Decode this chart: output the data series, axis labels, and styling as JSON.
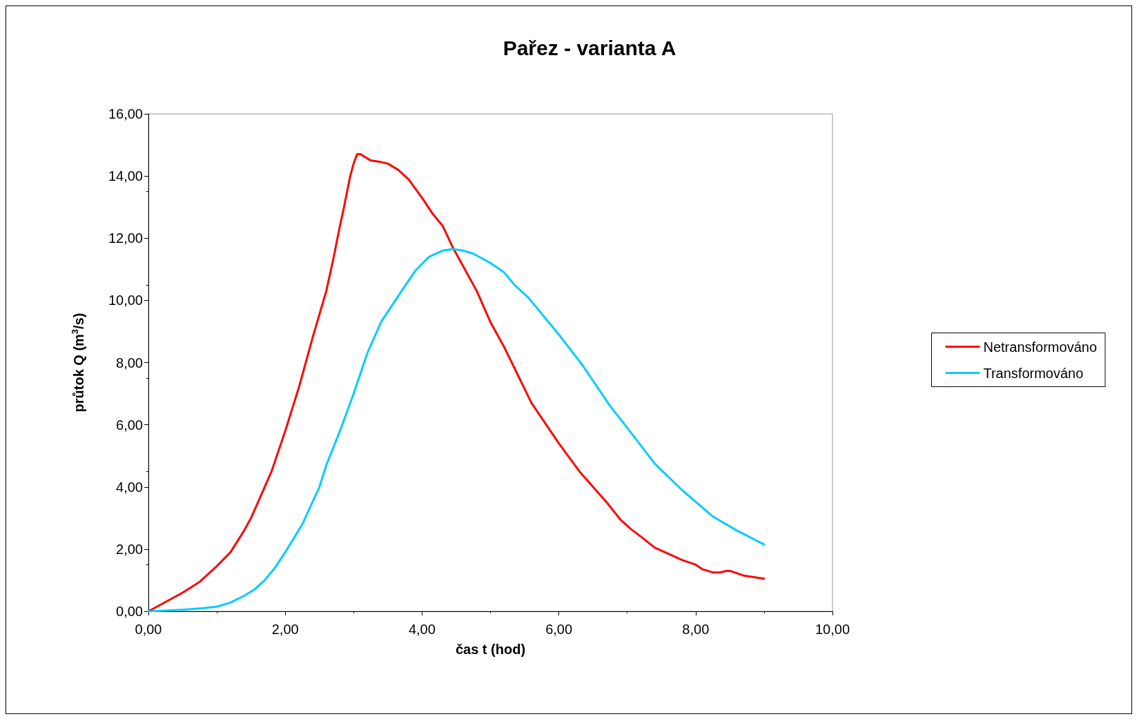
{
  "chart_data": {
    "type": "line",
    "title": "Pařez - varianta A",
    "xlabel": "čas t (hod)",
    "ylabel": "průtok Q (m$^{3}$/s)",
    "xlim": [
      0,
      10
    ],
    "ylim": [
      0,
      16
    ],
    "xticks": [
      {
        "value": 0,
        "label": "0,00"
      },
      {
        "value": 2,
        "label": "2,00"
      },
      {
        "value": 4,
        "label": "4,00"
      },
      {
        "value": 6,
        "label": "6,00"
      },
      {
        "value": 8,
        "label": "8,00"
      },
      {
        "value": 10,
        "label": "10,00"
      }
    ],
    "yticks": [
      {
        "value": 0,
        "label": "0,00"
      },
      {
        "value": 2,
        "label": "2,00"
      },
      {
        "value": 4,
        "label": "4,00"
      },
      {
        "value": 6,
        "label": "6,00"
      },
      {
        "value": 8,
        "label": "8,00"
      },
      {
        "value": 10,
        "label": "10,00"
      },
      {
        "value": 12,
        "label": "12,00"
      },
      {
        "value": 14,
        "label": "14,00"
      },
      {
        "value": 16,
        "label": "16,00"
      }
    ],
    "grid": false,
    "legend": "right",
    "marker": "none",
    "line_style": "solid",
    "series": [
      {
        "name": "Netransformováno",
        "color": "#ff0000",
        "x": [
          0,
          0.25,
          0.5,
          0.75,
          1.0,
          1.2,
          1.4,
          1.5,
          1.6,
          1.8,
          2.0,
          2.2,
          2.4,
          2.6,
          2.7,
          2.8,
          2.85,
          2.95,
          3.0,
          3.05,
          3.1,
          3.25,
          3.4,
          3.5,
          3.65,
          3.8,
          4.0,
          4.15,
          4.3,
          4.45,
          4.6,
          4.8,
          5.0,
          5.2,
          5.4,
          5.6,
          6.0,
          6.3,
          6.7,
          6.9,
          7.05,
          7.2,
          7.4,
          7.6,
          7.8,
          8.0,
          8.1,
          8.25,
          8.35,
          8.45,
          8.5,
          8.7,
          9.0
        ],
        "values": [
          0,
          0.3,
          0.6,
          0.95,
          1.45,
          1.9,
          2.6,
          3.0,
          3.5,
          4.5,
          5.8,
          7.2,
          8.8,
          10.3,
          11.3,
          12.4,
          12.9,
          14.0,
          14.4,
          14.7,
          14.7,
          14.5,
          14.45,
          14.4,
          14.2,
          13.9,
          13.3,
          12.8,
          12.4,
          11.7,
          11.1,
          10.3,
          9.3,
          8.5,
          7.6,
          6.7,
          5.4,
          4.5,
          3.5,
          2.95,
          2.65,
          2.4,
          2.05,
          1.85,
          1.65,
          1.5,
          1.35,
          1.25,
          1.25,
          1.3,
          1.3,
          1.15,
          1.05
        ]
      },
      {
        "name": "Transformováno",
        "color": "#00ccff",
        "x": [
          0,
          0.5,
          0.8,
          1.0,
          1.2,
          1.4,
          1.55,
          1.7,
          1.85,
          2.0,
          2.25,
          2.5,
          2.6,
          2.8,
          3.0,
          3.2,
          3.4,
          3.7,
          3.9,
          4.1,
          4.3,
          4.45,
          4.6,
          4.75,
          5.0,
          5.2,
          5.35,
          5.55,
          6.0,
          6.35,
          6.75,
          7.0,
          7.4,
          7.8,
          8.25,
          8.6,
          9.0
        ],
        "values": [
          0,
          0.05,
          0.1,
          0.15,
          0.28,
          0.5,
          0.7,
          1.0,
          1.4,
          1.9,
          2.8,
          4.0,
          4.7,
          5.8,
          7.0,
          8.3,
          9.3,
          10.3,
          10.95,
          11.4,
          11.6,
          11.65,
          11.6,
          11.5,
          11.2,
          10.9,
          10.5,
          10.1,
          8.9,
          7.9,
          6.6,
          5.9,
          4.75,
          3.9,
          3.05,
          2.6,
          2.15
        ]
      }
    ]
  }
}
